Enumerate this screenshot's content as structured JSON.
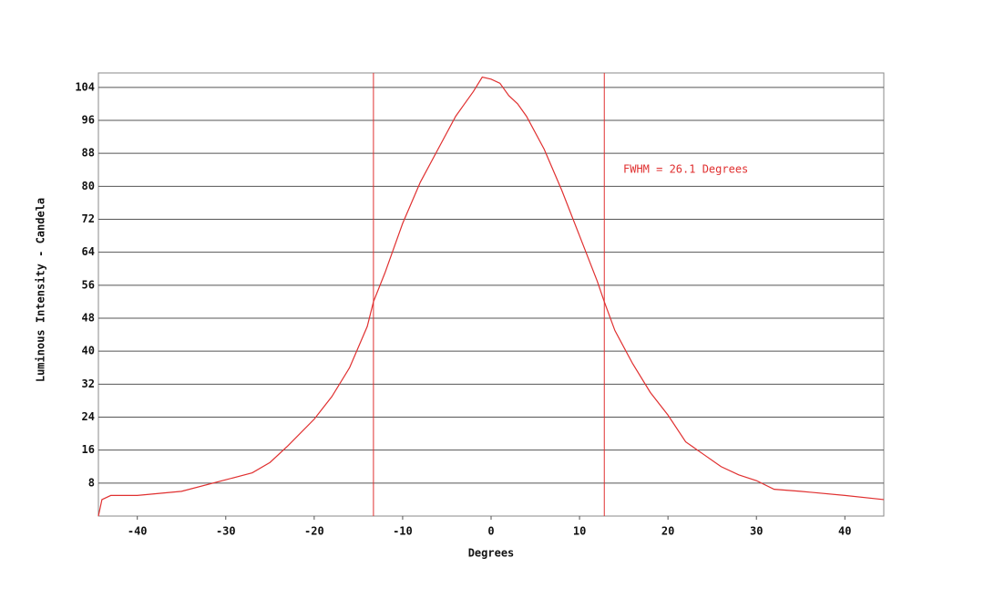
{
  "chart_data": {
    "type": "line",
    "x_label": "Degrees",
    "y_label": "Luminous Intensity - Candela",
    "annotation": "FWHM = 26.1 Degrees",
    "x": [
      -44.4,
      -44,
      -43,
      -40,
      -35,
      -30,
      -27,
      -25,
      -23,
      -20,
      -18,
      -16,
      -14,
      -13.3,
      -12,
      -10,
      -8,
      -6,
      -4,
      -2,
      -1,
      0,
      1,
      2,
      3,
      4,
      6,
      8,
      10,
      12,
      12.8,
      14,
      16,
      18,
      20,
      22,
      24,
      26,
      28,
      30,
      32,
      35,
      40,
      44.4
    ],
    "series": [
      {
        "color": "#e03030",
        "values": [
          0,
          4,
          5,
          5,
          6,
          8.8,
          10.5,
          13,
          17,
          23.5,
          29,
          36,
          46,
          52,
          59,
          71,
          81,
          89,
          97,
          103,
          106.5,
          106,
          105,
          102,
          100,
          97,
          89,
          79,
          68,
          57,
          52,
          45,
          37,
          30,
          24.5,
          18,
          15,
          12,
          10,
          8.6,
          6.5,
          6,
          5,
          4
        ]
      }
    ],
    "vlines": [
      -13.3,
      12.8
    ],
    "xlim": [
      -44.4,
      44.4
    ],
    "xticks": [
      -40,
      -30,
      -20,
      -10,
      0,
      10,
      20,
      30,
      40
    ],
    "ylim": [
      0,
      107.5
    ],
    "yticks": [
      8,
      16,
      24,
      32,
      40,
      48,
      56,
      64,
      72,
      80,
      88,
      96,
      104
    ],
    "grid": true
  }
}
